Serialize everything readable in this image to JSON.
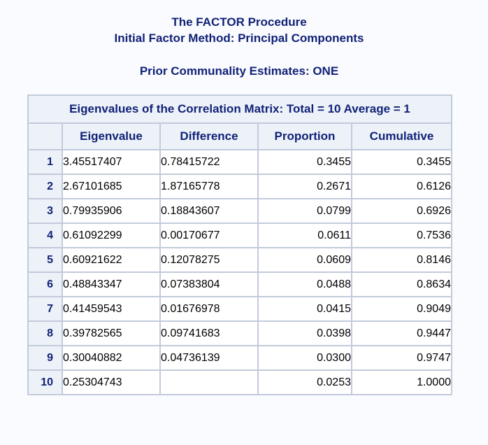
{
  "titles": {
    "line1": "The FACTOR Procedure",
    "line2": "Initial Factor Method: Principal Components"
  },
  "prior": "Prior Communality Estimates: ONE",
  "table": {
    "caption": "Eigenvalues of the Correlation Matrix: Total = 10 Average = 1",
    "headers": [
      "Eigenvalue",
      "Difference",
      "Proportion",
      "Cumulative"
    ],
    "rows": [
      {
        "n": "1",
        "eigenvalue": "3.45517407",
        "difference": "0.78415722",
        "proportion": "0.3455",
        "cumulative": "0.3455"
      },
      {
        "n": "2",
        "eigenvalue": "2.67101685",
        "difference": "1.87165778",
        "proportion": "0.2671",
        "cumulative": "0.6126"
      },
      {
        "n": "3",
        "eigenvalue": "0.79935906",
        "difference": "0.18843607",
        "proportion": "0.0799",
        "cumulative": "0.6926"
      },
      {
        "n": "4",
        "eigenvalue": "0.61092299",
        "difference": "0.00170677",
        "proportion": "0.0611",
        "cumulative": "0.7536"
      },
      {
        "n": "5",
        "eigenvalue": "0.60921622",
        "difference": "0.12078275",
        "proportion": "0.0609",
        "cumulative": "0.8146"
      },
      {
        "n": "6",
        "eigenvalue": "0.48843347",
        "difference": "0.07383804",
        "proportion": "0.0488",
        "cumulative": "0.8634"
      },
      {
        "n": "7",
        "eigenvalue": "0.41459543",
        "difference": "0.01676978",
        "proportion": "0.0415",
        "cumulative": "0.9049"
      },
      {
        "n": "8",
        "eigenvalue": "0.39782565",
        "difference": "0.09741683",
        "proportion": "0.0398",
        "cumulative": "0.9447"
      },
      {
        "n": "9",
        "eigenvalue": "0.30040882",
        "difference": "0.04736139",
        "proportion": "0.0300",
        "cumulative": "0.9747"
      },
      {
        "n": "10",
        "eigenvalue": "0.25304743",
        "difference": "",
        "proportion": "0.0253",
        "cumulative": "1.0000"
      }
    ]
  }
}
